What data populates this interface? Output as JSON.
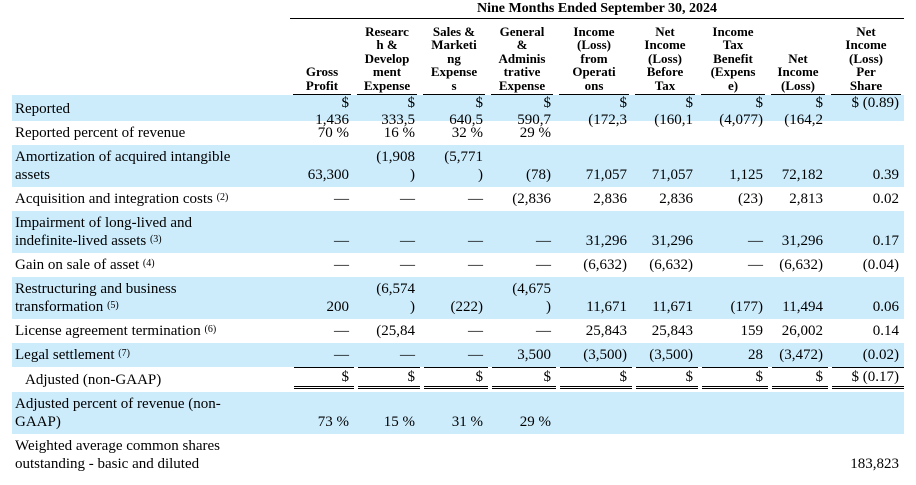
{
  "table": {
    "period_title": "Nine Months Ended September 30, 2024",
    "columns": [
      [
        "Gross",
        "Profit"
      ],
      [
        "Researc",
        "h &",
        "Develop",
        "ment",
        "Expense"
      ],
      [
        "Sales &",
        "Marketi",
        "ng",
        "Expense",
        "s"
      ],
      [
        "General",
        "&",
        "Adminis",
        "trative",
        "Expense"
      ],
      [
        "Income",
        "(Loss)",
        "from",
        "Operati",
        "ons"
      ],
      [
        "Net",
        "Income",
        "(Loss)",
        "Before",
        "Tax"
      ],
      [
        "Income",
        "Tax",
        "Benefit",
        "(Expens",
        "e)"
      ],
      [
        "Net",
        "Income",
        "(Loss)"
      ],
      [
        "Net",
        "Income",
        "(Loss)",
        "Per",
        "Share"
      ]
    ],
    "rows": [
      {
        "label": [
          "Reported"
        ],
        "footnote": "",
        "style": "blue",
        "kind": "dollar",
        "values": [
          "1,436",
          "333,5",
          "640,5",
          "590,7",
          "(172,3",
          "(160,1",
          "(4,077)",
          "(164,2",
          "$ (0.89)"
        ]
      },
      {
        "label": [
          "Reported percent of revenue"
        ],
        "footnote": "",
        "style": "white",
        "values": [
          "70 %",
          "16 %",
          "32 %",
          "29 %",
          "",
          "",
          "",
          "",
          ""
        ]
      },
      {
        "label": [
          "Amortization of acquired intangible",
          "assets"
        ],
        "footnote": "",
        "style": "blue",
        "values": [
          "63,300",
          "(1,908|)",
          "(5,771|)",
          "(78)",
          "71,057",
          "71,057",
          "1,125",
          "72,182",
          "0.39"
        ]
      },
      {
        "label": [
          "Acquisition and integration costs"
        ],
        "footnote": "(2)",
        "style": "white",
        "values": [
          "—",
          "—",
          "—",
          "(2,836",
          "2,836",
          "2,836",
          "(23)",
          "2,813",
          "0.02"
        ]
      },
      {
        "label": [
          "Impairment of long-lived and",
          "indefinite-lived assets"
        ],
        "footnote": "(3)",
        "style": "blue",
        "values": [
          "—",
          "—",
          "—",
          "—",
          "31,296",
          "31,296",
          "—",
          "31,296",
          "0.17"
        ]
      },
      {
        "label": [
          "Gain on sale of asset"
        ],
        "footnote": "(4)",
        "style": "white",
        "values": [
          "—",
          "—",
          "—",
          "—",
          "(6,632)",
          "(6,632)",
          "—",
          "(6,632)",
          "(0.04)"
        ]
      },
      {
        "label": [
          "Restructuring and business",
          "transformation"
        ],
        "footnote": "(5)",
        "style": "blue",
        "values": [
          "200",
          "(6,574|)",
          "(222)",
          "(4,675|)",
          "11,671",
          "11,671",
          "(177)",
          "11,494",
          "0.06"
        ]
      },
      {
        "label": [
          "License agreement termination"
        ],
        "footnote": "(6)",
        "style": "white",
        "values": [
          "—",
          "(25,84",
          "—",
          "—",
          "25,843",
          "25,843",
          "159",
          "26,002",
          "0.14"
        ]
      },
      {
        "label": [
          "Legal settlement"
        ],
        "footnote": "(7)",
        "style": "blue",
        "values": [
          "—",
          "—",
          "—",
          "3,500",
          "(3,500)",
          "(3,500)",
          "28",
          "(3,472)",
          "(0.02)"
        ]
      },
      {
        "label": [
          "Adjusted (non-GAAP)"
        ],
        "footnote": "",
        "style": "white",
        "kind": "adjusted",
        "values": [
          "",
          "",
          "",
          "",
          "",
          "",
          "",
          "",
          "$ (0.17)"
        ]
      },
      {
        "label": [
          "Adjusted percent of revenue (non-",
          "GAAP)"
        ],
        "footnote": "",
        "style": "blue",
        "values": [
          "73 %",
          "15 %",
          "31 %",
          "29 %",
          "",
          "",
          "",
          "",
          ""
        ]
      },
      {
        "label": [
          "Weighted average common shares",
          "outstanding - basic and diluted"
        ],
        "footnote": "",
        "style": "white",
        "values": [
          "",
          "",
          "",
          "",
          "",
          "",
          "",
          "",
          "183,823"
        ]
      }
    ],
    "currency_symbol": "$"
  }
}
